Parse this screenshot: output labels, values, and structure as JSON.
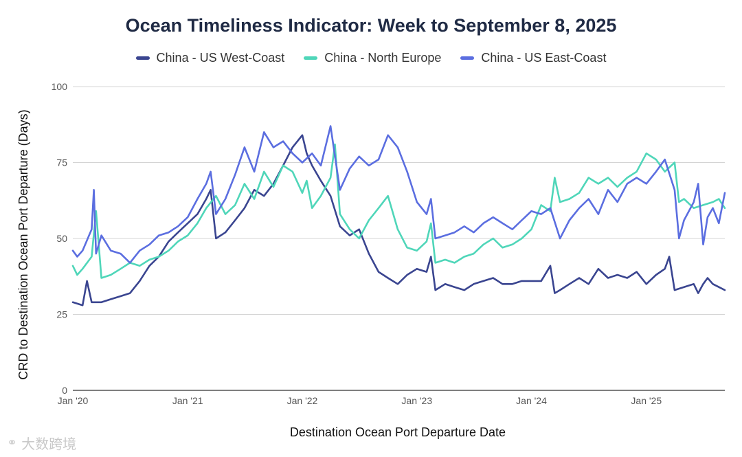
{
  "colors": {
    "us_west": "#3a4590",
    "north_europe": "#4fd6b9",
    "us_east": "#5b6ee0",
    "grid": "#d4d4d4"
  },
  "watermark": {
    "icon": "logo-icon",
    "text": "大数跨境"
  },
  "chart_data": {
    "type": "line",
    "title": "Ocean Timeliness Indicator: Week to September 8, 2025",
    "xlabel": "Destination Ocean Port Departure Date",
    "ylabel": "CRD to Destination Ocean Port Departure (Days)",
    "ylim": [
      0,
      100
    ],
    "yticks": [
      0,
      25,
      50,
      75,
      100
    ],
    "xlim": [
      "2020-01-01",
      "2025-09-08"
    ],
    "xticks": [
      {
        "date": "2020-01-01",
        "label": "Jan '20"
      },
      {
        "date": "2021-01-01",
        "label": "Jan '21"
      },
      {
        "date": "2022-01-01",
        "label": "Jan '22"
      },
      {
        "date": "2023-01-01",
        "label": "Jan '23"
      },
      {
        "date": "2024-01-01",
        "label": "Jan '24"
      },
      {
        "date": "2025-01-01",
        "label": "Jan '25"
      }
    ],
    "grid": true,
    "legend_position": "top",
    "series": [
      {
        "name": "China - US West-Coast",
        "color": "#3a4590",
        "points": [
          [
            "2020-01-01",
            29
          ],
          [
            "2020-02-01",
            28
          ],
          [
            "2020-02-15",
            36
          ],
          [
            "2020-03-01",
            29
          ],
          [
            "2020-04-01",
            29
          ],
          [
            "2020-05-01",
            30
          ],
          [
            "2020-06-01",
            31
          ],
          [
            "2020-07-01",
            32
          ],
          [
            "2020-08-01",
            36
          ],
          [
            "2020-09-01",
            41
          ],
          [
            "2020-10-01",
            44
          ],
          [
            "2020-11-01",
            49
          ],
          [
            "2020-12-01",
            52
          ],
          [
            "2021-01-01",
            55
          ],
          [
            "2021-02-01",
            58
          ],
          [
            "2021-03-01",
            63
          ],
          [
            "2021-03-15",
            66
          ],
          [
            "2021-04-01",
            50
          ],
          [
            "2021-05-01",
            52
          ],
          [
            "2021-06-01",
            56
          ],
          [
            "2021-07-01",
            60
          ],
          [
            "2021-08-01",
            66
          ],
          [
            "2021-09-01",
            64
          ],
          [
            "2021-10-01",
            68
          ],
          [
            "2021-11-01",
            74
          ],
          [
            "2021-12-01",
            80
          ],
          [
            "2022-01-01",
            84
          ],
          [
            "2022-01-15",
            78
          ],
          [
            "2022-02-01",
            74
          ],
          [
            "2022-03-01",
            69
          ],
          [
            "2022-04-01",
            64
          ],
          [
            "2022-05-01",
            54
          ],
          [
            "2022-06-01",
            51
          ],
          [
            "2022-07-01",
            53
          ],
          [
            "2022-08-01",
            45
          ],
          [
            "2022-09-01",
            39
          ],
          [
            "2022-10-01",
            37
          ],
          [
            "2022-11-01",
            35
          ],
          [
            "2022-12-01",
            38
          ],
          [
            "2023-01-01",
            40
          ],
          [
            "2023-02-01",
            39
          ],
          [
            "2023-02-15",
            44
          ],
          [
            "2023-03-01",
            33
          ],
          [
            "2023-04-01",
            35
          ],
          [
            "2023-05-01",
            34
          ],
          [
            "2023-06-01",
            33
          ],
          [
            "2023-07-01",
            35
          ],
          [
            "2023-08-01",
            36
          ],
          [
            "2023-09-01",
            37
          ],
          [
            "2023-10-01",
            35
          ],
          [
            "2023-11-01",
            35
          ],
          [
            "2023-12-01",
            36
          ],
          [
            "2024-01-01",
            36
          ],
          [
            "2024-02-01",
            36
          ],
          [
            "2024-03-01",
            41
          ],
          [
            "2024-03-15",
            32
          ],
          [
            "2024-04-01",
            33
          ],
          [
            "2024-05-01",
            35
          ],
          [
            "2024-06-01",
            37
          ],
          [
            "2024-07-01",
            35
          ],
          [
            "2024-08-01",
            40
          ],
          [
            "2024-09-01",
            37
          ],
          [
            "2024-10-01",
            38
          ],
          [
            "2024-11-01",
            37
          ],
          [
            "2024-12-01",
            39
          ],
          [
            "2025-01-01",
            35
          ],
          [
            "2025-02-01",
            38
          ],
          [
            "2025-03-01",
            40
          ],
          [
            "2025-03-15",
            44
          ],
          [
            "2025-04-01",
            33
          ],
          [
            "2025-05-01",
            34
          ],
          [
            "2025-06-01",
            35
          ],
          [
            "2025-06-15",
            32
          ],
          [
            "2025-07-01",
            35
          ],
          [
            "2025-07-15",
            37
          ],
          [
            "2025-08-01",
            35
          ],
          [
            "2025-08-20",
            34
          ],
          [
            "2025-09-08",
            33
          ]
        ]
      },
      {
        "name": "China - North Europe",
        "color": "#4fd6b9",
        "points": [
          [
            "2020-01-01",
            41
          ],
          [
            "2020-01-15",
            38
          ],
          [
            "2020-02-01",
            40
          ],
          [
            "2020-03-01",
            44
          ],
          [
            "2020-03-15",
            59
          ],
          [
            "2020-04-01",
            37
          ],
          [
            "2020-05-01",
            38
          ],
          [
            "2020-06-01",
            40
          ],
          [
            "2020-07-01",
            42
          ],
          [
            "2020-08-01",
            41
          ],
          [
            "2020-09-01",
            43
          ],
          [
            "2020-10-01",
            44
          ],
          [
            "2020-11-01",
            46
          ],
          [
            "2020-12-01",
            49
          ],
          [
            "2021-01-01",
            51
          ],
          [
            "2021-02-01",
            55
          ],
          [
            "2021-03-01",
            60
          ],
          [
            "2021-04-01",
            64
          ],
          [
            "2021-05-01",
            58
          ],
          [
            "2021-06-01",
            61
          ],
          [
            "2021-07-01",
            68
          ],
          [
            "2021-08-01",
            63
          ],
          [
            "2021-09-01",
            72
          ],
          [
            "2021-10-01",
            67
          ],
          [
            "2021-11-01",
            74
          ],
          [
            "2021-12-01",
            72
          ],
          [
            "2022-01-01",
            65
          ],
          [
            "2022-01-15",
            69
          ],
          [
            "2022-02-01",
            60
          ],
          [
            "2022-03-01",
            64
          ],
          [
            "2022-04-01",
            70
          ],
          [
            "2022-04-15",
            81
          ],
          [
            "2022-05-01",
            58
          ],
          [
            "2022-06-01",
            53
          ],
          [
            "2022-07-01",
            50
          ],
          [
            "2022-08-01",
            56
          ],
          [
            "2022-09-01",
            60
          ],
          [
            "2022-10-01",
            64
          ],
          [
            "2022-11-01",
            53
          ],
          [
            "2022-12-01",
            47
          ],
          [
            "2023-01-01",
            46
          ],
          [
            "2023-02-01",
            49
          ],
          [
            "2023-02-15",
            55
          ],
          [
            "2023-03-01",
            42
          ],
          [
            "2023-04-01",
            43
          ],
          [
            "2023-05-01",
            42
          ],
          [
            "2023-06-01",
            44
          ],
          [
            "2023-07-01",
            45
          ],
          [
            "2023-08-01",
            48
          ],
          [
            "2023-09-01",
            50
          ],
          [
            "2023-10-01",
            47
          ],
          [
            "2023-11-01",
            48
          ],
          [
            "2023-12-01",
            50
          ],
          [
            "2024-01-01",
            53
          ],
          [
            "2024-02-01",
            61
          ],
          [
            "2024-03-01",
            59
          ],
          [
            "2024-03-15",
            70
          ],
          [
            "2024-04-01",
            62
          ],
          [
            "2024-05-01",
            63
          ],
          [
            "2024-06-01",
            65
          ],
          [
            "2024-07-01",
            70
          ],
          [
            "2024-08-01",
            68
          ],
          [
            "2024-09-01",
            70
          ],
          [
            "2024-10-01",
            67
          ],
          [
            "2024-11-01",
            70
          ],
          [
            "2024-12-01",
            72
          ],
          [
            "2025-01-01",
            78
          ],
          [
            "2025-02-01",
            76
          ],
          [
            "2025-03-01",
            72
          ],
          [
            "2025-04-01",
            75
          ],
          [
            "2025-04-15",
            62
          ],
          [
            "2025-05-01",
            63
          ],
          [
            "2025-06-01",
            60
          ],
          [
            "2025-07-01",
            61
          ],
          [
            "2025-08-01",
            62
          ],
          [
            "2025-08-20",
            63
          ],
          [
            "2025-09-08",
            60
          ]
        ]
      },
      {
        "name": "China - US East-Coast",
        "color": "#5b6ee0",
        "points": [
          [
            "2020-01-01",
            46
          ],
          [
            "2020-01-15",
            44
          ],
          [
            "2020-02-01",
            46
          ],
          [
            "2020-03-01",
            53
          ],
          [
            "2020-03-08",
            66
          ],
          [
            "2020-03-15",
            45
          ],
          [
            "2020-04-01",
            51
          ],
          [
            "2020-05-01",
            46
          ],
          [
            "2020-06-01",
            45
          ],
          [
            "2020-07-01",
            42
          ],
          [
            "2020-08-01",
            46
          ],
          [
            "2020-09-01",
            48
          ],
          [
            "2020-10-01",
            51
          ],
          [
            "2020-11-01",
            52
          ],
          [
            "2020-12-01",
            54
          ],
          [
            "2021-01-01",
            57
          ],
          [
            "2021-02-01",
            63
          ],
          [
            "2021-03-01",
            68
          ],
          [
            "2021-03-15",
            72
          ],
          [
            "2021-04-01",
            58
          ],
          [
            "2021-05-01",
            63
          ],
          [
            "2021-06-01",
            71
          ],
          [
            "2021-07-01",
            80
          ],
          [
            "2021-08-01",
            72
          ],
          [
            "2021-09-01",
            85
          ],
          [
            "2021-10-01",
            80
          ],
          [
            "2021-11-01",
            82
          ],
          [
            "2021-12-01",
            78
          ],
          [
            "2022-01-01",
            75
          ],
          [
            "2022-02-01",
            78
          ],
          [
            "2022-03-01",
            74
          ],
          [
            "2022-04-01",
            87
          ],
          [
            "2022-05-01",
            66
          ],
          [
            "2022-06-01",
            73
          ],
          [
            "2022-07-01",
            77
          ],
          [
            "2022-08-01",
            74
          ],
          [
            "2022-09-01",
            76
          ],
          [
            "2022-10-01",
            84
          ],
          [
            "2022-11-01",
            80
          ],
          [
            "2022-12-01",
            72
          ],
          [
            "2023-01-01",
            62
          ],
          [
            "2023-02-01",
            58
          ],
          [
            "2023-02-15",
            63
          ],
          [
            "2023-03-01",
            50
          ],
          [
            "2023-04-01",
            51
          ],
          [
            "2023-05-01",
            52
          ],
          [
            "2023-06-01",
            54
          ],
          [
            "2023-07-01",
            52
          ],
          [
            "2023-08-01",
            55
          ],
          [
            "2023-09-01",
            57
          ],
          [
            "2023-10-01",
            55
          ],
          [
            "2023-11-01",
            53
          ],
          [
            "2023-12-01",
            56
          ],
          [
            "2024-01-01",
            59
          ],
          [
            "2024-02-01",
            58
          ],
          [
            "2024-03-01",
            60
          ],
          [
            "2024-04-01",
            50
          ],
          [
            "2024-05-01",
            56
          ],
          [
            "2024-06-01",
            60
          ],
          [
            "2024-07-01",
            63
          ],
          [
            "2024-08-01",
            58
          ],
          [
            "2024-09-01",
            66
          ],
          [
            "2024-10-01",
            62
          ],
          [
            "2024-11-01",
            68
          ],
          [
            "2024-12-01",
            70
          ],
          [
            "2025-01-01",
            68
          ],
          [
            "2025-02-01",
            72
          ],
          [
            "2025-03-01",
            76
          ],
          [
            "2025-04-01",
            66
          ],
          [
            "2025-04-15",
            50
          ],
          [
            "2025-05-01",
            56
          ],
          [
            "2025-06-01",
            62
          ],
          [
            "2025-06-15",
            68
          ],
          [
            "2025-07-01",
            48
          ],
          [
            "2025-07-15",
            57
          ],
          [
            "2025-08-01",
            60
          ],
          [
            "2025-08-20",
            55
          ],
          [
            "2025-09-08",
            65
          ]
        ]
      }
    ]
  }
}
